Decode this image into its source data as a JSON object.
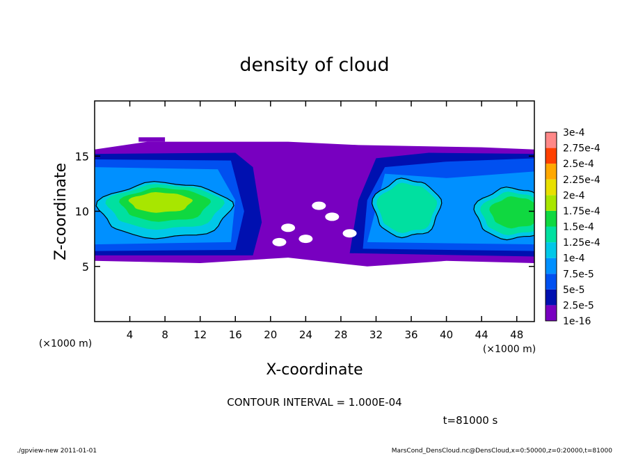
{
  "chart_data": {
    "type": "contour",
    "title": "density of cloud",
    "x_label": "X-coordinate",
    "y_label": "Z-coordinate",
    "x_unit": "(×1000 m)",
    "y_unit": "(×1000 m)",
    "xlim": [
      0,
      50
    ],
    "ylim": [
      0,
      20
    ],
    "xticks": [
      4,
      8,
      12,
      16,
      20,
      24,
      28,
      32,
      36,
      40,
      44,
      48
    ],
    "yticks": [
      5,
      10,
      15
    ],
    "levels": [
      {
        "value": 1e-16,
        "label": "1e-16"
      },
      {
        "value": 2.5e-05,
        "label": "2.5e-5"
      },
      {
        "value": 5e-05,
        "label": "5e-5"
      },
      {
        "value": 7.5e-05,
        "label": "7.5e-5"
      },
      {
        "value": 0.0001,
        "label": "1e-4"
      },
      {
        "value": 0.000125,
        "label": "1.25e-4"
      },
      {
        "value": 0.00015,
        "label": "1.5e-4"
      },
      {
        "value": 0.000175,
        "label": "1.75e-4"
      },
      {
        "value": 0.0002,
        "label": "2e-4"
      },
      {
        "value": 0.000225,
        "label": "2.25e-4"
      },
      {
        "value": 0.00025,
        "label": "2.5e-4"
      },
      {
        "value": 0.000275,
        "label": "2.75e-4"
      },
      {
        "value": 0.0003,
        "label": "3e-4"
      }
    ],
    "colors": [
      "#7800c0",
      "#0010b0",
      "#0050f0",
      "#0090ff",
      "#00c8e8",
      "#00e0a0",
      "#10d840",
      "#a8e600",
      "#e8e000",
      "#ffa800",
      "#ff4000",
      "#ff8888"
    ],
    "contour_interval": "CONTOUR INTERVAL = 1.000E-04",
    "time": "t=81000 s",
    "footer_left": "./gpview-new  2011-01-01",
    "footer_right": "MarsCond_DensCloud.nc@DensCloud,x=0:50000,z=0:20000,t=81000"
  }
}
